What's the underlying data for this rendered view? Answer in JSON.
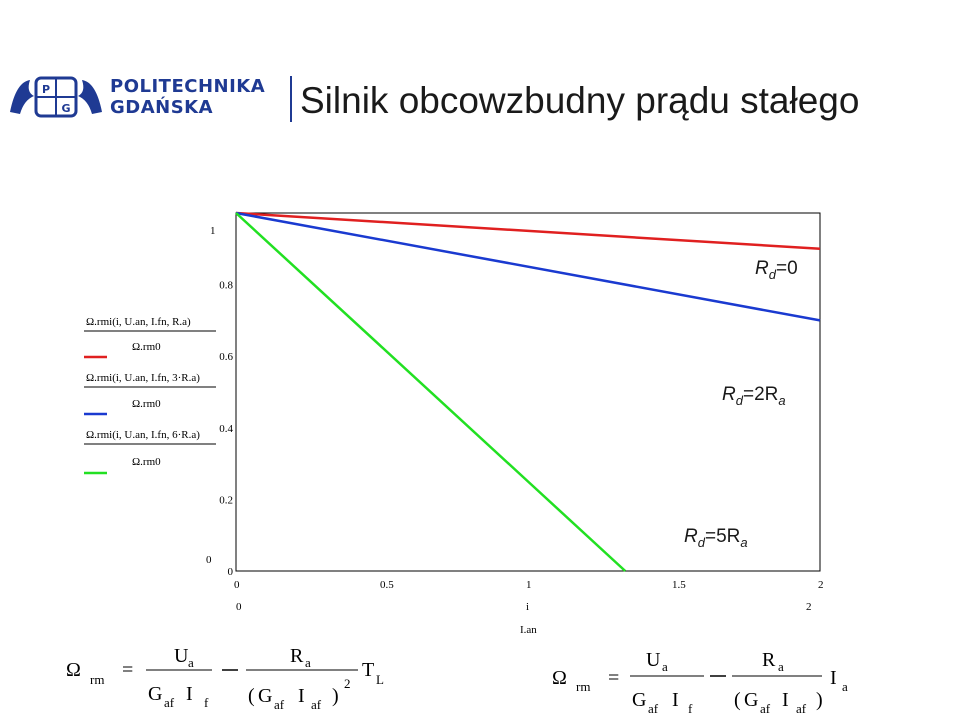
{
  "header": {
    "logo_line1": "POLITECHNIKA",
    "logo_line2": "GDAŃSKA",
    "logo_initials": "P G",
    "title": "Silnik obcowzbudny prądu stałego"
  },
  "colors": {
    "brand": "#1f3a93",
    "red": "#e02020",
    "blue": "#1a3ad0",
    "green": "#22e022"
  },
  "chart_data": {
    "type": "line",
    "x": [
      0,
      2
    ],
    "xlim": [
      0,
      2
    ],
    "ylim": [
      0,
      1
    ],
    "x_ticks": [
      "0",
      "0.5",
      "1",
      "1.5",
      "2"
    ],
    "y_ticks": [
      "0",
      "0.2",
      "0.4",
      "0.6",
      "0.8"
    ],
    "y_range_labels": {
      "top": "1",
      "bottom": "0"
    },
    "x_range_labels": {
      "left": "0",
      "right": "2"
    },
    "xlabel": "I.an",
    "xvar": "i",
    "series": [
      {
        "name": "Rd=0",
        "color": "#e02020",
        "x": [
          0,
          2
        ],
        "y": [
          1.0,
          0.9
        ]
      },
      {
        "name": "Rd=2Ra",
        "color": "#1a3ad0",
        "x": [
          0,
          2
        ],
        "y": [
          1.0,
          0.7
        ]
      },
      {
        "name": "Rd=5Ra",
        "color": "#22e022",
        "x": [
          0,
          1.0,
          1.333
        ],
        "y": [
          1.0,
          0.25,
          0.0
        ]
      }
    ],
    "legend": [
      {
        "num": "Ω.rmi(i, U.an, I.fn, R.a)",
        "den": "Ω.rm0",
        "color": "#e02020"
      },
      {
        "num": "Ω.rmi(i, U.an, I.fn, 3·R.a)",
        "den": "Ω.rm0",
        "color": "#1a3ad0"
      },
      {
        "num": "Ω.rmi(i, U.an, I.fn, 6·R.a)",
        "den": "Ω.rm0",
        "color": "#22e022"
      }
    ],
    "annotations": [
      {
        "main": "R",
        "sub": "d",
        "rest": "=0"
      },
      {
        "main": "R",
        "sub": "d",
        "rest": "=2R",
        "sub2": "a"
      },
      {
        "main": "R",
        "sub": "d",
        "rest": "=5R",
        "sub2": "a"
      }
    ]
  },
  "formulas": {
    "omega": "Ω",
    "rm": "rm",
    "eq": "=",
    "minus": "−",
    "Ua": "U",
    "a": "a",
    "G": "G",
    "af": "af",
    "I": "I",
    "f": "f",
    "R": "R",
    "T": "T",
    "L": "L",
    "two": "2",
    "lp": "(",
    "rp": ")"
  }
}
